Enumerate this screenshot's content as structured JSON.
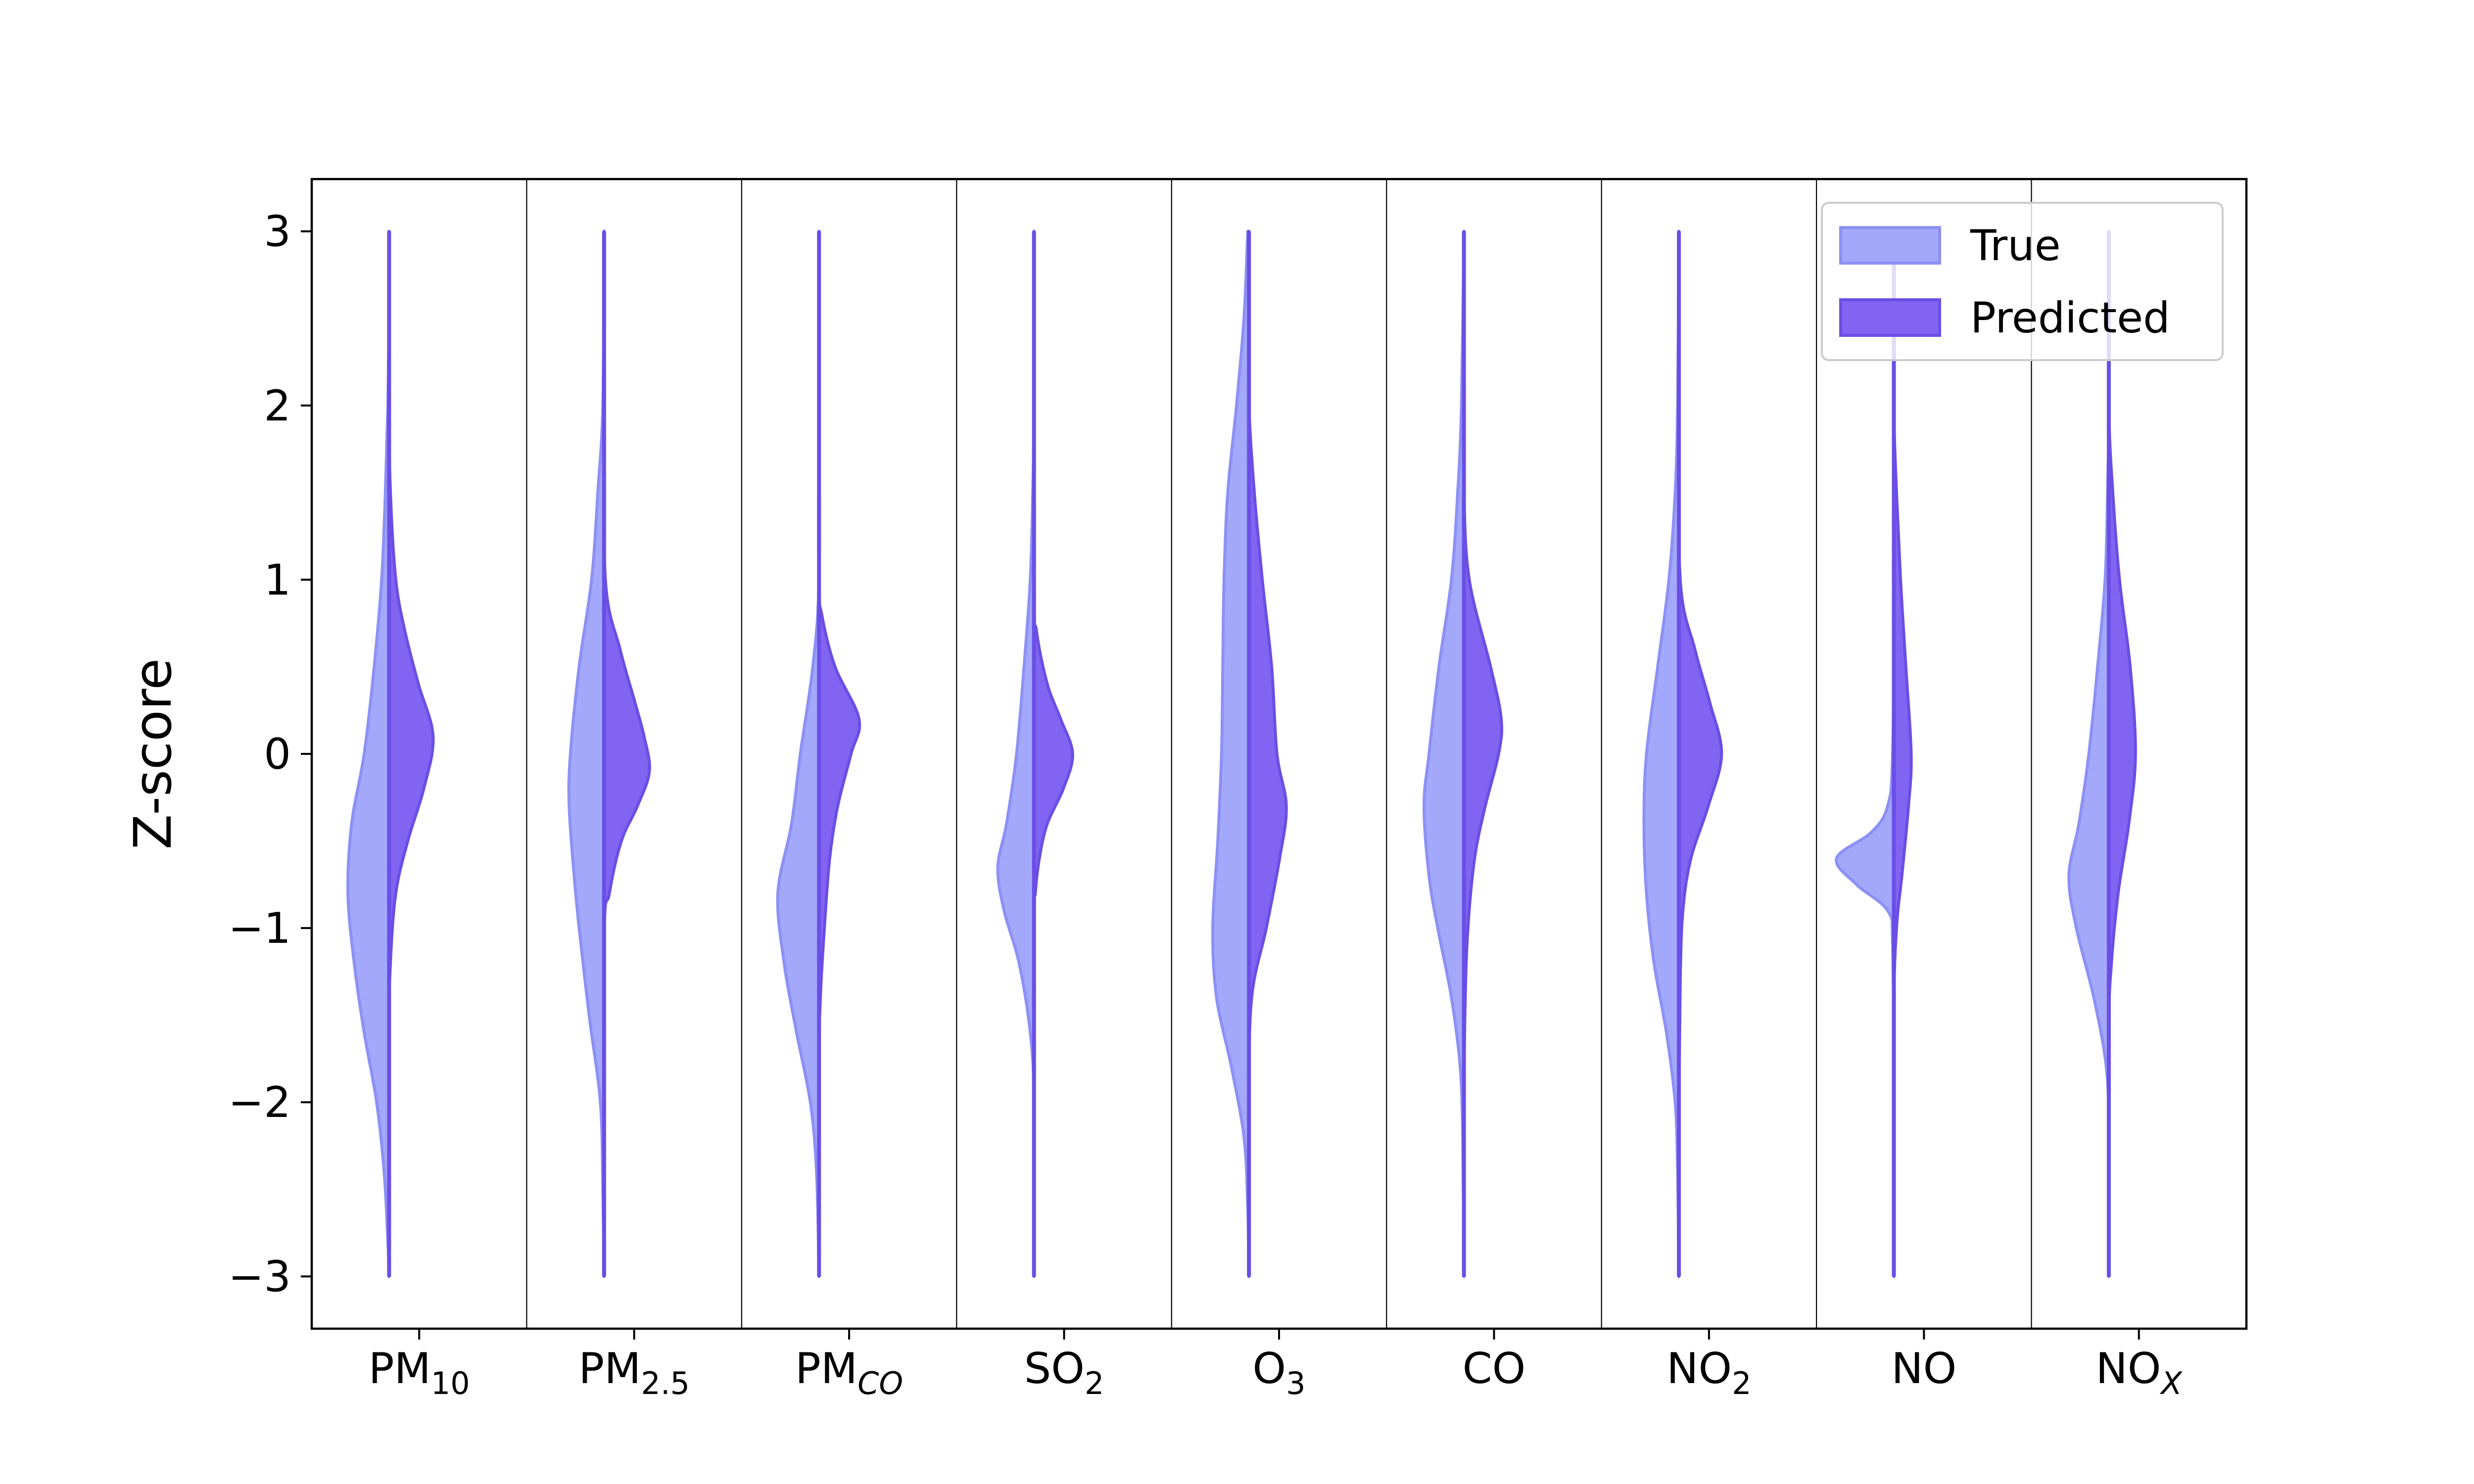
{
  "chart_data": {
    "type": "violin",
    "ylabel": "Z-score",
    "ylim": [
      -3.3,
      3.3
    ],
    "yticks": [
      {
        "value": 3,
        "label": "3"
      },
      {
        "value": 2,
        "label": "2"
      },
      {
        "value": 1,
        "label": "1"
      },
      {
        "value": 0,
        "label": "0"
      },
      {
        "value": -1,
        "label": "−1"
      },
      {
        "value": -2,
        "label": "−2"
      },
      {
        "value": -3,
        "label": "−3"
      }
    ],
    "categories": [
      {
        "base": "PM",
        "sub": "10",
        "sub_italic": false
      },
      {
        "base": "PM",
        "sub": "2.5",
        "sub_italic": false
      },
      {
        "base": "PM",
        "sub": "CO",
        "sub_italic": true
      },
      {
        "base": "SO",
        "sub": "2",
        "sub_italic": false
      },
      {
        "base": "O",
        "sub": "3",
        "sub_italic": false
      },
      {
        "base": "CO",
        "sub": "",
        "sub_italic": false
      },
      {
        "base": "NO",
        "sub": "2",
        "sub_italic": false
      },
      {
        "base": "NO",
        "sub": "",
        "sub_italic": false
      },
      {
        "base": "NO",
        "sub": "X",
        "sub_italic": true
      }
    ],
    "legend": {
      "position": "upper right",
      "entries": [
        {
          "label": "True",
          "key": "true"
        },
        {
          "label": "Predicted",
          "key": "predicted"
        }
      ]
    },
    "colors": {
      "true_fill": "#a3a8fb",
      "true_edge": "#8d90f4",
      "pred_fill": "#8165f2",
      "pred_edge": "#6a4ee6",
      "axis": "#000000"
    },
    "grid": false,
    "series": [
      {
        "key": "true",
        "side": "left",
        "density_width_max": 0.58,
        "densities": [
          [
            [
              3.0,
              0.0
            ],
            [
              2.5,
              0.0
            ],
            [
              2.0,
              0.01
            ],
            [
              1.5,
              0.03
            ],
            [
              1.0,
              0.06
            ],
            [
              0.5,
              0.12
            ],
            [
              0.0,
              0.2
            ],
            [
              -0.4,
              0.3
            ],
            [
              -0.8,
              0.33
            ],
            [
              -1.2,
              0.28
            ],
            [
              -1.6,
              0.2
            ],
            [
              -2.0,
              0.1
            ],
            [
              -2.4,
              0.04
            ],
            [
              -2.8,
              0.01
            ],
            [
              -3.0,
              0.0
            ]
          ],
          [
            [
              3.0,
              0.0
            ],
            [
              2.0,
              0.01
            ],
            [
              1.5,
              0.05
            ],
            [
              1.0,
              0.1
            ],
            [
              0.5,
              0.2
            ],
            [
              0.0,
              0.27
            ],
            [
              -0.3,
              0.28
            ],
            [
              -0.7,
              0.24
            ],
            [
              -1.0,
              0.2
            ],
            [
              -1.5,
              0.12
            ],
            [
              -2.0,
              0.03
            ],
            [
              -2.5,
              0.01
            ],
            [
              -3.0,
              0.0
            ]
          ],
          [
            [
              3.0,
              0.0
            ],
            [
              2.0,
              0.0
            ],
            [
              1.0,
              0.0
            ],
            [
              0.5,
              0.05
            ],
            [
              0.0,
              0.15
            ],
            [
              -0.4,
              0.22
            ],
            [
              -0.8,
              0.33
            ],
            [
              -1.2,
              0.28
            ],
            [
              -1.6,
              0.18
            ],
            [
              -2.0,
              0.07
            ],
            [
              -2.4,
              0.02
            ],
            [
              -3.0,
              0.0
            ]
          ],
          [
            [
              3.0,
              0.0
            ],
            [
              2.0,
              0.0
            ],
            [
              1.5,
              0.01
            ],
            [
              1.0,
              0.03
            ],
            [
              0.5,
              0.08
            ],
            [
              0.0,
              0.14
            ],
            [
              -0.4,
              0.22
            ],
            [
              -0.65,
              0.29
            ],
            [
              -0.9,
              0.24
            ],
            [
              -1.2,
              0.12
            ],
            [
              -1.6,
              0.03
            ],
            [
              -2.0,
              0.0
            ],
            [
              -3.0,
              0.0
            ]
          ],
          [
            [
              3.0,
              0.01
            ],
            [
              2.5,
              0.04
            ],
            [
              2.0,
              0.1
            ],
            [
              1.5,
              0.17
            ],
            [
              1.0,
              0.2
            ],
            [
              0.5,
              0.21
            ],
            [
              0.0,
              0.22
            ],
            [
              -0.5,
              0.25
            ],
            [
              -1.0,
              0.29
            ],
            [
              -1.4,
              0.26
            ],
            [
              -1.8,
              0.14
            ],
            [
              -2.2,
              0.04
            ],
            [
              -2.6,
              0.01
            ],
            [
              -3.0,
              0.0
            ]
          ],
          [
            [
              3.0,
              0.0
            ],
            [
              2.0,
              0.02
            ],
            [
              1.5,
              0.05
            ],
            [
              1.0,
              0.1
            ],
            [
              0.5,
              0.2
            ],
            [
              0.0,
              0.28
            ],
            [
              -0.3,
              0.32
            ],
            [
              -0.7,
              0.28
            ],
            [
              -1.0,
              0.21
            ],
            [
              -1.4,
              0.1
            ],
            [
              -1.8,
              0.03
            ],
            [
              -2.2,
              0.01
            ],
            [
              -3.0,
              0.0
            ]
          ],
          [
            [
              3.0,
              0.0
            ],
            [
              2.0,
              0.01
            ],
            [
              1.5,
              0.03
            ],
            [
              1.0,
              0.08
            ],
            [
              0.5,
              0.17
            ],
            [
              0.0,
              0.26
            ],
            [
              -0.4,
              0.28
            ],
            [
              -0.8,
              0.26
            ],
            [
              -1.2,
              0.2
            ],
            [
              -1.6,
              0.1
            ],
            [
              -2.0,
              0.03
            ],
            [
              -2.4,
              0.01
            ],
            [
              -3.0,
              0.0
            ]
          ],
          [
            [
              3.0,
              0.0
            ],
            [
              1.0,
              0.0
            ],
            [
              0.0,
              0.01
            ],
            [
              -0.3,
              0.05
            ],
            [
              -0.45,
              0.18
            ],
            [
              -0.6,
              0.46
            ],
            [
              -0.75,
              0.3
            ],
            [
              -0.9,
              0.05
            ],
            [
              -1.1,
              0.01
            ],
            [
              -2.0,
              0.0
            ],
            [
              -3.0,
              0.0
            ]
          ],
          [
            [
              3.0,
              0.0
            ],
            [
              2.0,
              0.0
            ],
            [
              1.5,
              0.01
            ],
            [
              1.0,
              0.03
            ],
            [
              0.5,
              0.09
            ],
            [
              0.0,
              0.16
            ],
            [
              -0.4,
              0.24
            ],
            [
              -0.7,
              0.32
            ],
            [
              -1.0,
              0.26
            ],
            [
              -1.4,
              0.12
            ],
            [
              -1.8,
              0.02
            ],
            [
              -2.2,
              0.0
            ],
            [
              -3.0,
              0.0
            ]
          ]
        ]
      },
      {
        "key": "predicted",
        "side": "right",
        "density_width_max": 0.62,
        "densities": [
          [
            [
              3.0,
              0.0
            ],
            [
              2.0,
              0.0
            ],
            [
              1.5,
              0.01
            ],
            [
              1.0,
              0.05
            ],
            [
              0.7,
              0.12
            ],
            [
              0.4,
              0.22
            ],
            [
              0.1,
              0.33
            ],
            [
              -0.2,
              0.26
            ],
            [
              -0.5,
              0.14
            ],
            [
              -0.8,
              0.05
            ],
            [
              -1.2,
              0.01
            ],
            [
              -1.6,
              0.0
            ],
            [
              -3.0,
              0.0
            ]
          ],
          [
            [
              3.0,
              0.0
            ],
            [
              2.0,
              0.0
            ],
            [
              1.0,
              0.01
            ],
            [
              0.6,
              0.12
            ],
            [
              0.3,
              0.23
            ],
            [
              0.1,
              0.3
            ],
            [
              -0.1,
              0.34
            ],
            [
              -0.3,
              0.25
            ],
            [
              -0.5,
              0.13
            ],
            [
              -0.8,
              0.04
            ],
            [
              -1.1,
              0.0
            ],
            [
              -3.0,
              0.0
            ]
          ],
          [
            [
              3.0,
              0.0
            ],
            [
              2.0,
              0.0
            ],
            [
              1.0,
              0.0
            ],
            [
              0.8,
              0.02
            ],
            [
              0.5,
              0.12
            ],
            [
              0.2,
              0.3
            ],
            [
              0.0,
              0.24
            ],
            [
              -0.3,
              0.14
            ],
            [
              -0.6,
              0.08
            ],
            [
              -1.0,
              0.04
            ],
            [
              -1.4,
              0.01
            ],
            [
              -1.8,
              0.0
            ],
            [
              -3.0,
              0.0
            ]
          ],
          [
            [
              3.0,
              0.0
            ],
            [
              1.0,
              0.0
            ],
            [
              0.7,
              0.02
            ],
            [
              0.4,
              0.1
            ],
            [
              0.2,
              0.2
            ],
            [
              0.0,
              0.29
            ],
            [
              -0.2,
              0.22
            ],
            [
              -0.4,
              0.1
            ],
            [
              -0.6,
              0.04
            ],
            [
              -0.8,
              0.01
            ],
            [
              -1.0,
              0.0
            ],
            [
              -3.0,
              0.0
            ]
          ],
          [
            [
              3.0,
              0.0
            ],
            [
              2.5,
              0.0
            ],
            [
              2.0,
              0.0
            ],
            [
              1.5,
              0.04
            ],
            [
              1.0,
              0.1
            ],
            [
              0.5,
              0.17
            ],
            [
              0.0,
              0.21
            ],
            [
              -0.3,
              0.28
            ],
            [
              -0.6,
              0.23
            ],
            [
              -1.0,
              0.13
            ],
            [
              -1.4,
              0.02
            ],
            [
              -2.0,
              0.0
            ],
            [
              -3.0,
              0.0
            ]
          ],
          [
            [
              3.0,
              0.0
            ],
            [
              2.0,
              0.0
            ],
            [
              1.5,
              0.0
            ],
            [
              1.0,
              0.04
            ],
            [
              0.5,
              0.2
            ],
            [
              0.2,
              0.28
            ],
            [
              0.0,
              0.26
            ],
            [
              -0.3,
              0.16
            ],
            [
              -0.6,
              0.08
            ],
            [
              -1.0,
              0.03
            ],
            [
              -1.4,
              0.01
            ],
            [
              -2.0,
              0.0
            ],
            [
              -3.0,
              0.0
            ]
          ],
          [
            [
              3.0,
              0.0
            ],
            [
              2.0,
              0.0
            ],
            [
              1.0,
              0.01
            ],
            [
              0.6,
              0.12
            ],
            [
              0.3,
              0.23
            ],
            [
              0.0,
              0.32
            ],
            [
              -0.3,
              0.22
            ],
            [
              -0.6,
              0.09
            ],
            [
              -0.9,
              0.03
            ],
            [
              -1.3,
              0.01
            ],
            [
              -2.0,
              0.0
            ],
            [
              -3.0,
              0.0
            ]
          ],
          [
            [
              3.0,
              0.0
            ],
            [
              2.0,
              0.0
            ],
            [
              1.5,
              0.02
            ],
            [
              1.0,
              0.05
            ],
            [
              0.5,
              0.09
            ],
            [
              0.0,
              0.13
            ],
            [
              -0.3,
              0.11
            ],
            [
              -0.7,
              0.06
            ],
            [
              -1.0,
              0.02
            ],
            [
              -1.5,
              0.0
            ],
            [
              -3.0,
              0.0
            ]
          ],
          [
            [
              3.0,
              0.0
            ],
            [
              2.0,
              0.0
            ],
            [
              1.5,
              0.03
            ],
            [
              1.0,
              0.08
            ],
            [
              0.5,
              0.16
            ],
            [
              0.0,
              0.2
            ],
            [
              -0.4,
              0.15
            ],
            [
              -0.8,
              0.07
            ],
            [
              -1.2,
              0.02
            ],
            [
              -1.6,
              0.0
            ],
            [
              -3.0,
              0.0
            ]
          ]
        ]
      }
    ]
  }
}
